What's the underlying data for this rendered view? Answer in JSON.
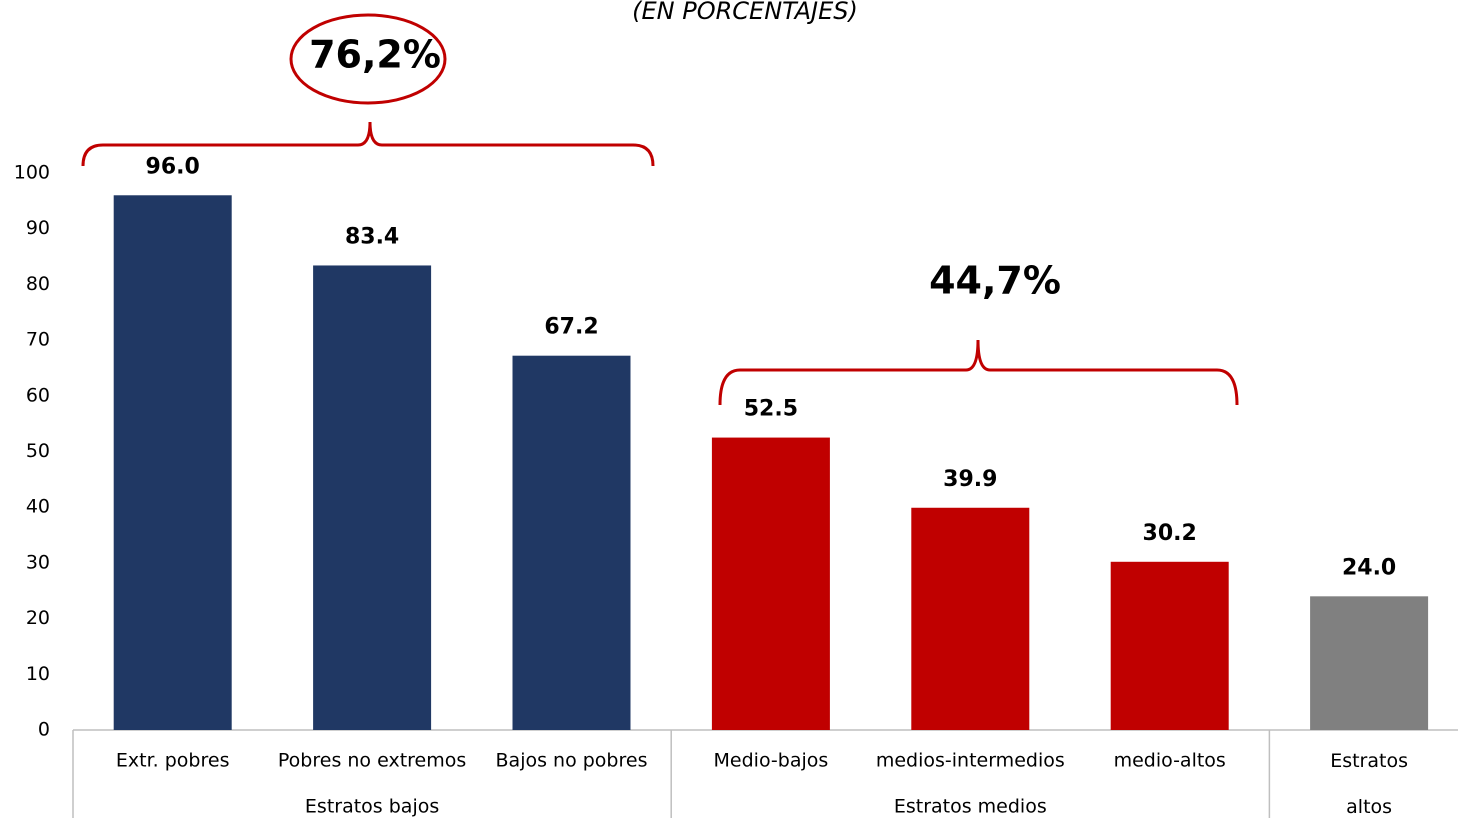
{
  "chart_data": {
    "type": "bar",
    "title": "(EN PORCENTAJES)",
    "categories": [
      "Extr. pobres",
      "Pobres no extremos",
      "Bajos no pobres",
      "Medio-bajos",
      "medios-intermedios",
      "medio-altos",
      "Estratos altos"
    ],
    "values": [
      96.0,
      83.4,
      67.2,
      52.5,
      39.9,
      30.2,
      24.0
    ],
    "value_labels": [
      "96.0",
      "83.4",
      "67.2",
      "52.5",
      "39.9",
      "30.2",
      "24.0"
    ],
    "colors": [
      "#203864",
      "#203864",
      "#203864",
      "#c00000",
      "#c00000",
      "#c00000",
      "#808080"
    ],
    "groups": [
      {
        "label": "Estratos bajos",
        "span": 3
      },
      {
        "label": "Estratos medios",
        "span": 3
      },
      {
        "label": null,
        "span": 1
      }
    ],
    "annotations": [
      "76,2%",
      "44,7%"
    ],
    "ylim": [
      0,
      100
    ],
    "yticks": [
      0,
      10,
      20,
      30,
      40,
      50,
      60,
      70,
      80,
      90,
      100
    ]
  }
}
